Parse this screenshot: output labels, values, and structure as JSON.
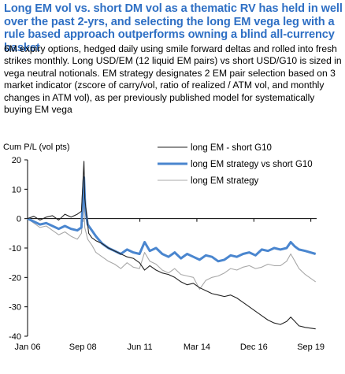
{
  "heading": {
    "title": "Long EM vol vs. short DM vol as a thematic RV has held in well over the past 2-yrs, and selecting the long EM vega leg with a rule based approach outperforms owning a blind all-currency basket",
    "subtitle": "6M expiry options, hedged daily using smile forward deltas and rolled into fresh strikes monthly. Long USD/EM (12 liquid EM pairs) vs short USD/G10 is sized in vega neutral notionals. EM strategy designates 2 EM pair selection based on 3 market indicator (zscore of carry/vol, ratio of realized / ATM vol, and monthly changes in ATM vol), as per previously published model for systematically buying EM vega"
  },
  "chart_data": {
    "type": "line",
    "ylabel": "Cum P/L (vol pts)",
    "ylim": [
      -40,
      20
    ],
    "yticks": [
      20,
      10,
      0,
      -10,
      -20,
      -30,
      -40
    ],
    "xlim": [
      2006.0,
      2019.95
    ],
    "xticks": [
      {
        "label": "Jan 06",
        "x": 2006.0
      },
      {
        "label": "Sep 08",
        "x": 2008.67
      },
      {
        "label": "Jun 11",
        "x": 2011.42
      },
      {
        "label": "Mar 14",
        "x": 2014.17
      },
      {
        "label": "Dec 16",
        "x": 2016.92
      },
      {
        "label": "Sep 19",
        "x": 2019.67
      }
    ],
    "grid": false,
    "legend_position": "top-right",
    "series": [
      {
        "name": "long EM - short G10",
        "color": "#222222",
        "width": 1.1,
        "points": [
          [
            2006.0,
            0
          ],
          [
            2006.3,
            0.8
          ],
          [
            2006.6,
            -0.5
          ],
          [
            2006.9,
            0.5
          ],
          [
            2007.2,
            1
          ],
          [
            2007.5,
            -0.5
          ],
          [
            2007.8,
            1.5
          ],
          [
            2008.1,
            0.5
          ],
          [
            2008.4,
            1.5
          ],
          [
            2008.6,
            2.5
          ],
          [
            2008.72,
            19.5
          ],
          [
            2008.76,
            7
          ],
          [
            2008.85,
            1
          ],
          [
            2008.95,
            -5
          ],
          [
            2009.1,
            -6.5
          ],
          [
            2009.3,
            -7.5
          ],
          [
            2009.6,
            -8.5
          ],
          [
            2009.9,
            -10
          ],
          [
            2010.2,
            -11
          ],
          [
            2010.5,
            -12
          ],
          [
            2010.8,
            -13
          ],
          [
            2011.1,
            -13.5
          ],
          [
            2011.4,
            -15
          ],
          [
            2011.65,
            -17.5
          ],
          [
            2011.9,
            -16
          ],
          [
            2012.2,
            -17.5
          ],
          [
            2012.5,
            -18.5
          ],
          [
            2012.8,
            -19
          ],
          [
            2013.1,
            -20
          ],
          [
            2013.4,
            -21.5
          ],
          [
            2013.7,
            -22.5
          ],
          [
            2014.0,
            -22
          ],
          [
            2014.3,
            -23.5
          ],
          [
            2014.6,
            -24.5
          ],
          [
            2014.9,
            -25.5
          ],
          [
            2015.2,
            -26
          ],
          [
            2015.5,
            -26.5
          ],
          [
            2015.8,
            -26
          ],
          [
            2016.1,
            -27
          ],
          [
            2016.4,
            -28.5
          ],
          [
            2016.7,
            -30
          ],
          [
            2017.0,
            -31.5
          ],
          [
            2017.3,
            -33
          ],
          [
            2017.6,
            -34.5
          ],
          [
            2017.9,
            -35.5
          ],
          [
            2018.2,
            -36
          ],
          [
            2018.5,
            -35
          ],
          [
            2018.7,
            -33.5
          ],
          [
            2018.9,
            -35
          ],
          [
            2019.1,
            -36.5
          ],
          [
            2019.4,
            -37
          ],
          [
            2019.9,
            -37.5
          ]
        ]
      },
      {
        "name": "long EM strategy vs short G10",
        "color": "#4a86cf",
        "width": 3,
        "points": [
          [
            2006.0,
            0
          ],
          [
            2006.3,
            -1
          ],
          [
            2006.6,
            -2
          ],
          [
            2006.9,
            -1.5
          ],
          [
            2007.2,
            -2.5
          ],
          [
            2007.5,
            -3.5
          ],
          [
            2007.8,
            -2.5
          ],
          [
            2008.1,
            -3.5
          ],
          [
            2008.4,
            -4
          ],
          [
            2008.6,
            -3
          ],
          [
            2008.72,
            14
          ],
          [
            2008.78,
            4
          ],
          [
            2008.9,
            -2
          ],
          [
            2009.1,
            -4
          ],
          [
            2009.3,
            -6
          ],
          [
            2009.6,
            -8.5
          ],
          [
            2009.9,
            -10
          ],
          [
            2010.2,
            -11
          ],
          [
            2010.5,
            -12
          ],
          [
            2010.8,
            -10.5
          ],
          [
            2011.1,
            -11.5
          ],
          [
            2011.4,
            -12
          ],
          [
            2011.65,
            -8
          ],
          [
            2011.9,
            -11
          ],
          [
            2012.2,
            -10
          ],
          [
            2012.5,
            -12
          ],
          [
            2012.8,
            -13
          ],
          [
            2013.1,
            -11.5
          ],
          [
            2013.4,
            -13.5
          ],
          [
            2013.7,
            -12
          ],
          [
            2014.0,
            -13
          ],
          [
            2014.3,
            -14
          ],
          [
            2014.6,
            -12.5
          ],
          [
            2014.9,
            -13
          ],
          [
            2015.2,
            -14.5
          ],
          [
            2015.5,
            -14
          ],
          [
            2015.8,
            -12.5
          ],
          [
            2016.1,
            -13
          ],
          [
            2016.4,
            -12
          ],
          [
            2016.7,
            -11.5
          ],
          [
            2017.0,
            -12.5
          ],
          [
            2017.3,
            -10.5
          ],
          [
            2017.6,
            -11
          ],
          [
            2017.9,
            -10
          ],
          [
            2018.2,
            -10.5
          ],
          [
            2018.5,
            -10
          ],
          [
            2018.7,
            -8
          ],
          [
            2018.9,
            -9.5
          ],
          [
            2019.1,
            -10.5
          ],
          [
            2019.4,
            -11
          ],
          [
            2019.9,
            -12
          ]
        ]
      },
      {
        "name": "long EM strategy",
        "color": "#a8a8a8",
        "width": 1.1,
        "points": [
          [
            2006.0,
            0
          ],
          [
            2006.3,
            -1.5
          ],
          [
            2006.6,
            -3
          ],
          [
            2006.9,
            -2.5
          ],
          [
            2007.2,
            -4
          ],
          [
            2007.5,
            -5.5
          ],
          [
            2007.8,
            -4.5
          ],
          [
            2008.1,
            -6
          ],
          [
            2008.4,
            -7
          ],
          [
            2008.6,
            -5
          ],
          [
            2008.72,
            6
          ],
          [
            2008.76,
            -3
          ],
          [
            2008.9,
            -7
          ],
          [
            2009.1,
            -9
          ],
          [
            2009.3,
            -11.5
          ],
          [
            2009.6,
            -13
          ],
          [
            2009.9,
            -14.5
          ],
          [
            2010.2,
            -15.5
          ],
          [
            2010.5,
            -17
          ],
          [
            2010.8,
            -15
          ],
          [
            2011.1,
            -16.5
          ],
          [
            2011.4,
            -17
          ],
          [
            2011.65,
            -11.5
          ],
          [
            2011.9,
            -14.5
          ],
          [
            2012.2,
            -15.5
          ],
          [
            2012.5,
            -17.5
          ],
          [
            2012.8,
            -18.5
          ],
          [
            2013.1,
            -17
          ],
          [
            2013.4,
            -19
          ],
          [
            2013.7,
            -19.5
          ],
          [
            2014.0,
            -20
          ],
          [
            2014.3,
            -24
          ],
          [
            2014.6,
            -21
          ],
          [
            2014.9,
            -20
          ],
          [
            2015.2,
            -19.5
          ],
          [
            2015.5,
            -18.5
          ],
          [
            2015.8,
            -17
          ],
          [
            2016.1,
            -17.5
          ],
          [
            2016.4,
            -16.5
          ],
          [
            2016.7,
            -16
          ],
          [
            2017.0,
            -17
          ],
          [
            2017.3,
            -16.5
          ],
          [
            2017.6,
            -15.5
          ],
          [
            2017.9,
            -16
          ],
          [
            2018.2,
            -16
          ],
          [
            2018.5,
            -14.5
          ],
          [
            2018.7,
            -12
          ],
          [
            2018.9,
            -14.5
          ],
          [
            2019.1,
            -17
          ],
          [
            2019.4,
            -19
          ],
          [
            2019.9,
            -21.5
          ]
        ]
      }
    ]
  }
}
